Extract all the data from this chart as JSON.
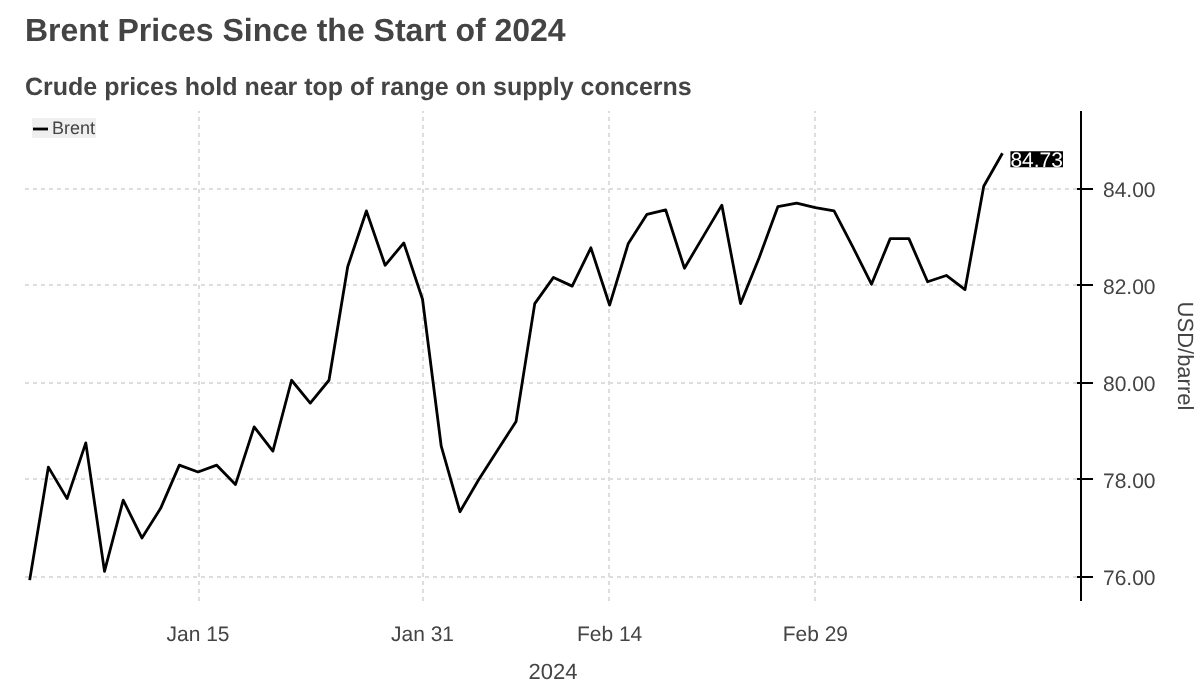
{
  "chart_data": {
    "type": "line",
    "title": "Brent Prices Since the Start of 2024",
    "subtitle": "Crude prices hold near top of range on supply concerns",
    "xlabel": "2024",
    "ylabel": "USD/barrel",
    "categories": [
      null,
      null,
      null,
      null,
      null,
      null,
      null,
      null,
      null,
      "Jan 15",
      null,
      null,
      null,
      null,
      null,
      null,
      null,
      null,
      null,
      null,
      null,
      "Jan 31",
      null,
      null,
      null,
      null,
      null,
      null,
      null,
      null,
      null,
      "Feb 14",
      null,
      null,
      null,
      null,
      null,
      null,
      null,
      null,
      null,
      null,
      "Feb 29",
      null,
      null,
      null,
      null,
      null,
      null,
      null,
      null,
      null,
      null
    ],
    "series": [
      {
        "name": "Brent",
        "color": "#000000",
        "values": [
          75.93,
          78.26,
          77.61,
          78.76,
          76.11,
          77.58,
          76.8,
          77.41,
          78.3,
          78.16,
          78.3,
          77.9,
          79.09,
          78.59,
          80.05,
          79.58,
          80.05,
          82.39,
          83.54,
          82.42,
          82.88,
          81.72,
          78.69,
          77.34,
          78.0,
          78.6,
          79.2,
          81.63,
          82.17,
          81.99,
          82.78,
          81.6,
          82.87,
          83.47,
          83.56,
          82.36,
          83.01,
          83.66,
          81.63,
          82.58,
          83.63,
          83.7,
          83.61,
          83.54,
          82.8,
          82.03,
          82.97,
          82.97,
          82.08,
          82.21,
          81.92,
          84.05,
          84.73
        ],
        "value_labels": [
          null,
          null,
          null,
          null,
          null,
          null,
          null,
          null,
          null,
          null,
          null,
          null,
          null,
          null,
          null,
          null,
          null,
          null,
          null,
          null,
          null,
          null,
          null,
          null,
          null,
          null,
          null,
          null,
          null,
          null,
          null,
          null,
          null,
          null,
          null,
          null,
          null,
          null,
          null,
          null,
          null,
          null,
          null,
          null,
          null,
          null,
          null,
          null,
          null,
          null,
          null,
          null,
          "84.73"
        ]
      }
    ],
    "ylim": [
      75.5,
      85.6
    ],
    "yticks": [
      {
        "value": 76,
        "label": "76.00"
      },
      {
        "value": 78,
        "label": "78.00"
      },
      {
        "value": 80,
        "label": "80.00"
      },
      {
        "value": 82,
        "label": "82.00"
      },
      {
        "value": 84,
        "label": "84.00"
      }
    ],
    "grid": true,
    "legend": "top left",
    "line_style": "solid",
    "marker": "none"
  }
}
